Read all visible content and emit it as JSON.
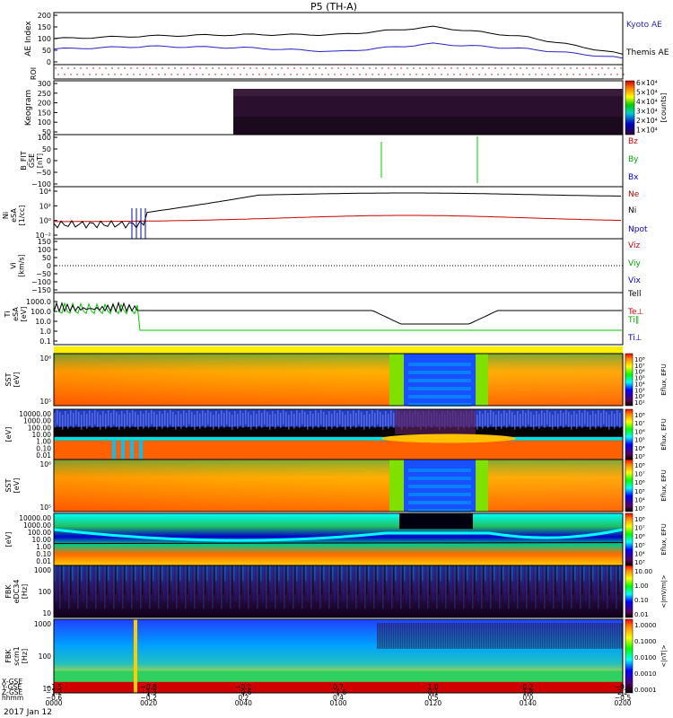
{
  "title": "P5 (TH-A)",
  "date_label": "2017 Jan 12",
  "colors": {
    "kyoto": "#2222cc",
    "themis": "#000000",
    "red": "#cc0000",
    "green": "#00cc00",
    "blue": "#0000cc"
  },
  "panels": {
    "ae": {
      "ylabel": "AE Index",
      "ticks": [
        "200",
        "150",
        "100",
        "50",
        "0"
      ],
      "legend": [
        "Kyoto AE",
        "Themis AE"
      ]
    },
    "roi": {
      "ylabel": "ROI"
    },
    "keo": {
      "ylabel": "Keogram",
      "ticks": [
        "300",
        "250",
        "200",
        "150",
        "100",
        "50"
      ],
      "cbar_ticks": [
        "6×10⁴",
        "5×10⁴",
        "4×10⁴",
        "3×10⁴",
        "2×10⁴",
        "1×10⁴"
      ],
      "cbar_label": "[counts]"
    },
    "b": {
      "ylabel": [
        "B_FIT",
        "GSE",
        "[nT]"
      ],
      "ticks": [
        "100",
        "50",
        "0",
        "−50",
        "−100"
      ],
      "legend": [
        "Bz",
        "By",
        "Bx"
      ]
    },
    "ni": {
      "ylabel": [
        "Ni",
        "eSA",
        "[1/cc]"
      ],
      "ticks": [
        "10⁴",
        "10²",
        "10⁰",
        "10⁻²"
      ],
      "legend": [
        "Ne",
        "Ni",
        "Npot"
      ]
    },
    "vi": {
      "ylabel": [
        "Vi",
        "[km/s]"
      ],
      "ticks": [
        "150",
        "100",
        "50",
        "0",
        "−50",
        "−100",
        "−150"
      ],
      "legend": [
        "Viz",
        "Viy",
        "Vix"
      ]
    },
    "ti": {
      "ylabel": [
        "Ti",
        "eSA",
        "[eV]"
      ],
      "ticks": [
        "1000.0",
        "100.0",
        "10.0",
        "1.0",
        "0.1"
      ],
      "legend": [
        "Tell",
        "Te⊥",
        "Ti∥",
        "Ti⊥"
      ]
    },
    "sst1": {
      "ylabel": [
        "SST",
        "[eV]"
      ],
      "ticks": [
        "10⁶",
        "10⁵"
      ],
      "cbar": [
        "10⁸",
        "10⁷",
        "10⁶",
        "10⁵",
        "10⁴",
        "10³",
        "10²",
        "10¹"
      ],
      "cbar_label": "Eflux, EFU"
    },
    "esa1": {
      "ylabel": [
        "[eV]"
      ],
      "ticks": [
        "10000.00",
        "1000.00",
        "100.00",
        "10.00",
        "1.00",
        "0.10",
        "0.01"
      ],
      "cbar": [
        "10⁸",
        "10⁷",
        "10⁶",
        "10⁵",
        "10⁴",
        "10³"
      ],
      "cbar_label": "Eflux, EFU"
    },
    "sst2": {
      "ylabel": [
        "SST",
        "[eV]"
      ],
      "ticks": [
        "10⁶",
        "10⁵"
      ],
      "cbar": [
        "10⁸",
        "10⁷",
        "10⁶",
        "10⁵",
        "10⁴",
        "10³"
      ],
      "cbar_label": "Eflux, EFU"
    },
    "esa2": {
      "ylabel": [
        "[eV]"
      ],
      "ticks": [
        "10000.00",
        "1000.00",
        "100.00",
        "10.00",
        "1.00",
        "0.10",
        "0.01"
      ],
      "cbar": [
        "10⁸",
        "10⁷",
        "10⁶",
        "10⁵",
        "10⁴",
        "10³"
      ],
      "cbar_label": "Eflux, EFU"
    },
    "fbk1": {
      "ylabel": [
        "FBK",
        "eDC34",
        "[Hz]"
      ],
      "ticks": [
        "1000",
        "100",
        "10"
      ],
      "cbar": [
        "10.00",
        "1.00",
        "0.10",
        "0.01"
      ],
      "cbar_label": "<|mV/m|>"
    },
    "fbk2": {
      "ylabel": [
        "FBK",
        "scm1",
        "[Hz]"
      ],
      "ticks": [
        "1000",
        "100",
        "10"
      ],
      "cbar": [
        "1.0000",
        "0.1000",
        "0.0100",
        "0.0010",
        "0.0001"
      ],
      "cbar_label": "<|nT|>"
    }
  },
  "xaxis": {
    "row_labels": [
      "X-GSE",
      "Y-GSE",
      "Z-GSE",
      "hhmm"
    ],
    "ticks": [
      {
        "x": "−1.5",
        "y": "−1.2",
        "z": "−0.6",
        "t": "0000"
      },
      {
        "x": "−0.8",
        "y": "−1.3",
        "z": "−0.2",
        "t": "0020"
      },
      {
        "x": "−0.1",
        "y": "−0.6",
        "z": "0.2",
        "t": "0040"
      },
      {
        "x": "0.7",
        "y": "−1.6",
        "z": "0.4",
        "t": "0100"
      },
      {
        "x": "1.0",
        "y": "0.1",
        "z": "0.5",
        "t": "0120"
      },
      {
        "x": "0.2",
        "y": "1.8",
        "z": "0.0",
        "t": "0140"
      },
      {
        "x": "−0.8",
        "y": "2.2",
        "z": "−0.5",
        "t": "0200"
      }
    ]
  },
  "chart_data": {
    "type": "line",
    "title": "P5 (TH-A)",
    "xlabel": "hhmm",
    "categories": [
      "0000",
      "0020",
      "0040",
      "0100",
      "0120",
      "0140",
      "0200"
    ],
    "series": [
      {
        "name": "Kyoto AE",
        "values": [
          60,
          70,
          65,
          50,
          80,
          60,
          25
        ]
      },
      {
        "name": "Themis AE",
        "values": [
          100,
          110,
          115,
          115,
          145,
          105,
          40
        ]
      }
    ],
    "ylabel": "AE Index",
    "ylim": [
      0,
      200
    ]
  }
}
